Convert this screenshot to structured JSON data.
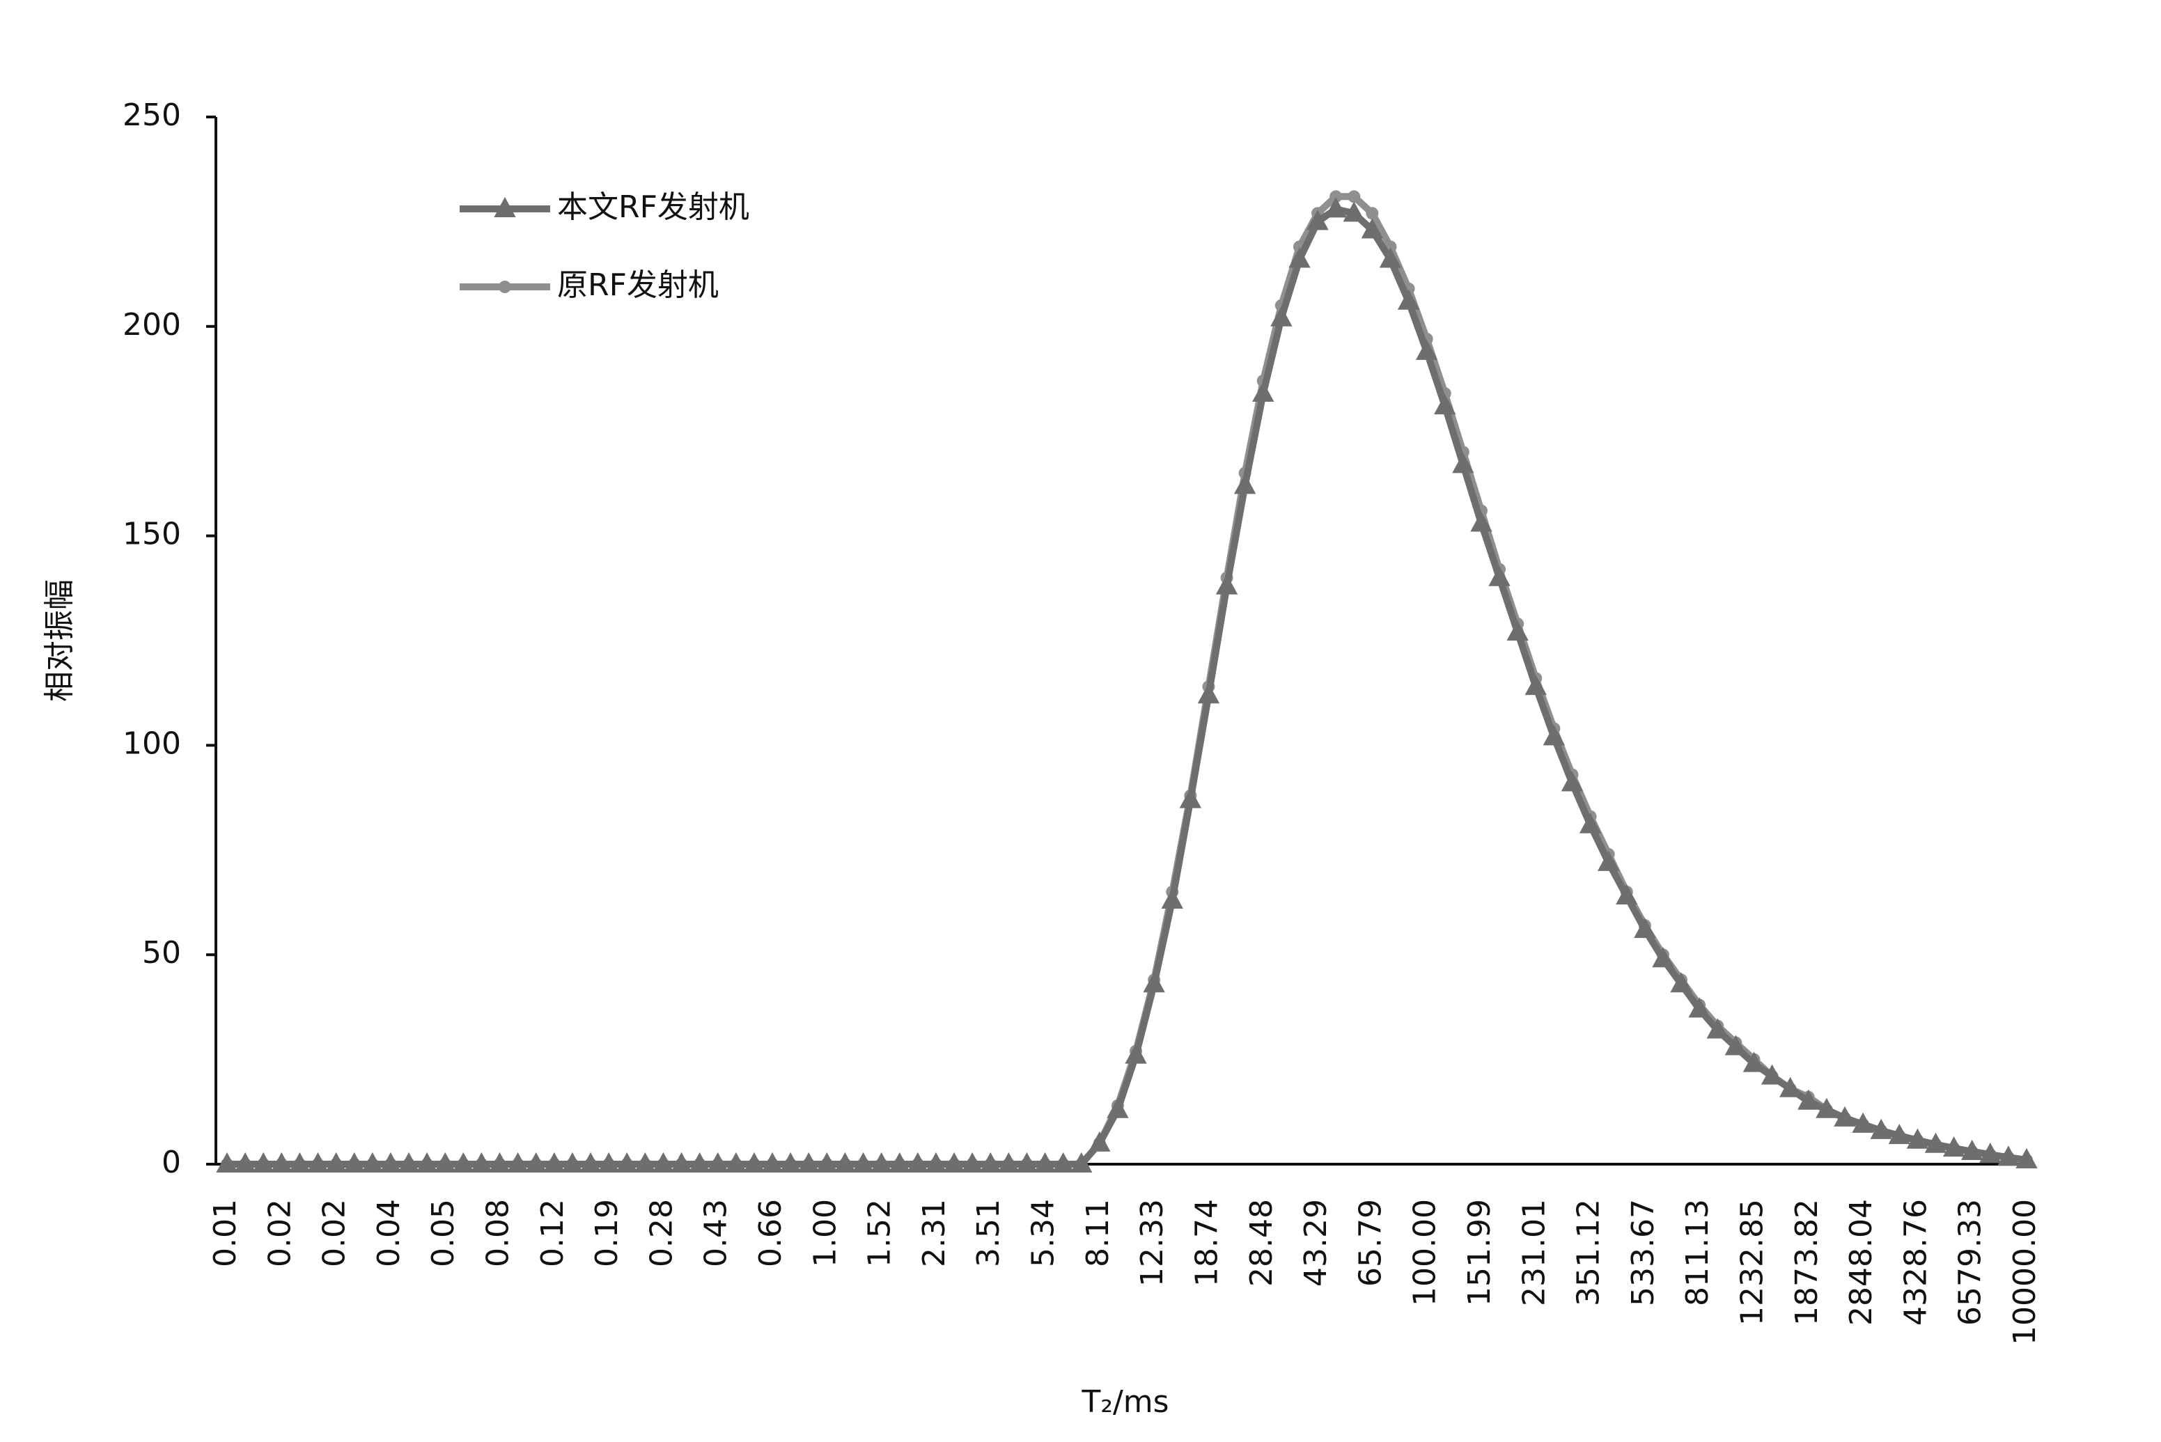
{
  "chart_data": {
    "type": "line",
    "x_label": "T₂/ms",
    "y_label": "相对振幅",
    "categories": [
      "0.01",
      null,
      null,
      "0.02",
      null,
      null,
      "0.02",
      null,
      null,
      "0.04",
      null,
      null,
      "0.05",
      null,
      null,
      "0.08",
      null,
      null,
      "0.12",
      null,
      null,
      "0.19",
      null,
      null,
      "0.28",
      null,
      null,
      "0.43",
      null,
      null,
      "0.66",
      null,
      null,
      "1.00",
      null,
      null,
      "1.52",
      null,
      null,
      "2.31",
      null,
      null,
      "3.51",
      null,
      null,
      "5.34",
      null,
      null,
      "8.11",
      null,
      null,
      "12.33",
      null,
      null,
      "18.74",
      null,
      null,
      "28.48",
      null,
      null,
      "43.29",
      null,
      null,
      "65.79",
      null,
      null,
      "100.00",
      null,
      null,
      "151.99",
      null,
      null,
      "231.01",
      null,
      null,
      "351.12",
      null,
      null,
      "533.67",
      null,
      null,
      "811.13",
      null,
      null,
      "1232.85",
      null,
      null,
      "1873.82",
      null,
      null,
      "2848.04",
      null,
      null,
      "4328.76",
      null,
      null,
      "6579.33",
      null,
      null,
      "10000.00"
    ],
    "series": [
      {
        "name": "本文RF发射机",
        "color": "#6e6e6e",
        "marker": "triangle",
        "values": [
          0,
          0,
          0,
          0,
          0,
          0,
          0,
          0,
          0,
          0,
          0,
          0,
          0,
          0,
          0,
          0,
          0,
          0,
          0,
          0,
          0,
          0,
          0,
          0,
          0,
          0,
          0,
          0,
          0,
          0,
          0,
          0,
          0,
          0,
          0,
          0,
          0,
          0,
          0,
          0,
          0,
          0,
          0,
          0,
          0,
          0,
          0,
          0,
          5,
          13,
          26,
          43,
          63,
          87,
          112,
          138,
          162,
          184,
          202,
          216,
          225,
          228,
          227,
          223,
          216,
          206,
          194,
          181,
          167,
          153,
          140,
          127,
          114,
          102,
          91,
          81,
          72,
          64,
          56,
          49,
          43,
          37,
          32,
          28,
          24,
          21,
          18,
          15,
          13,
          11,
          9.5,
          8,
          6.8,
          5.7,
          4.7,
          3.8,
          3,
          2.3,
          1.6,
          1
        ]
      },
      {
        "name": "原RF发射机",
        "color": "#8f8f8f",
        "marker": "circle",
        "values": [
          0,
          0,
          0,
          0,
          0,
          0,
          0,
          0,
          0,
          0,
          0,
          0,
          0,
          0,
          0,
          0,
          0,
          0,
          0,
          0,
          0,
          0,
          0,
          0,
          0,
          0,
          0,
          0,
          0,
          0,
          0,
          0,
          0,
          0,
          0,
          0,
          0,
          0,
          0,
          0,
          0,
          0,
          0,
          0,
          0,
          0,
          0,
          0,
          5,
          14,
          27,
          44,
          65,
          88,
          114,
          140,
          165,
          187,
          205,
          219,
          227,
          231,
          231,
          227,
          219,
          209,
          197,
          184,
          170,
          156,
          142,
          129,
          116,
          104,
          93,
          83,
          74,
          65,
          57,
          50,
          44,
          38,
          33,
          29,
          25,
          21,
          18,
          16,
          13,
          11,
          9.5,
          8,
          6.8,
          5.7,
          4.7,
          3.8,
          3,
          2.3,
          1.6,
          1
        ]
      }
    ],
    "ylim": [
      0,
      250
    ],
    "yticks": [
      0,
      50,
      100,
      150,
      200,
      250
    ],
    "legend": "upper left"
  }
}
